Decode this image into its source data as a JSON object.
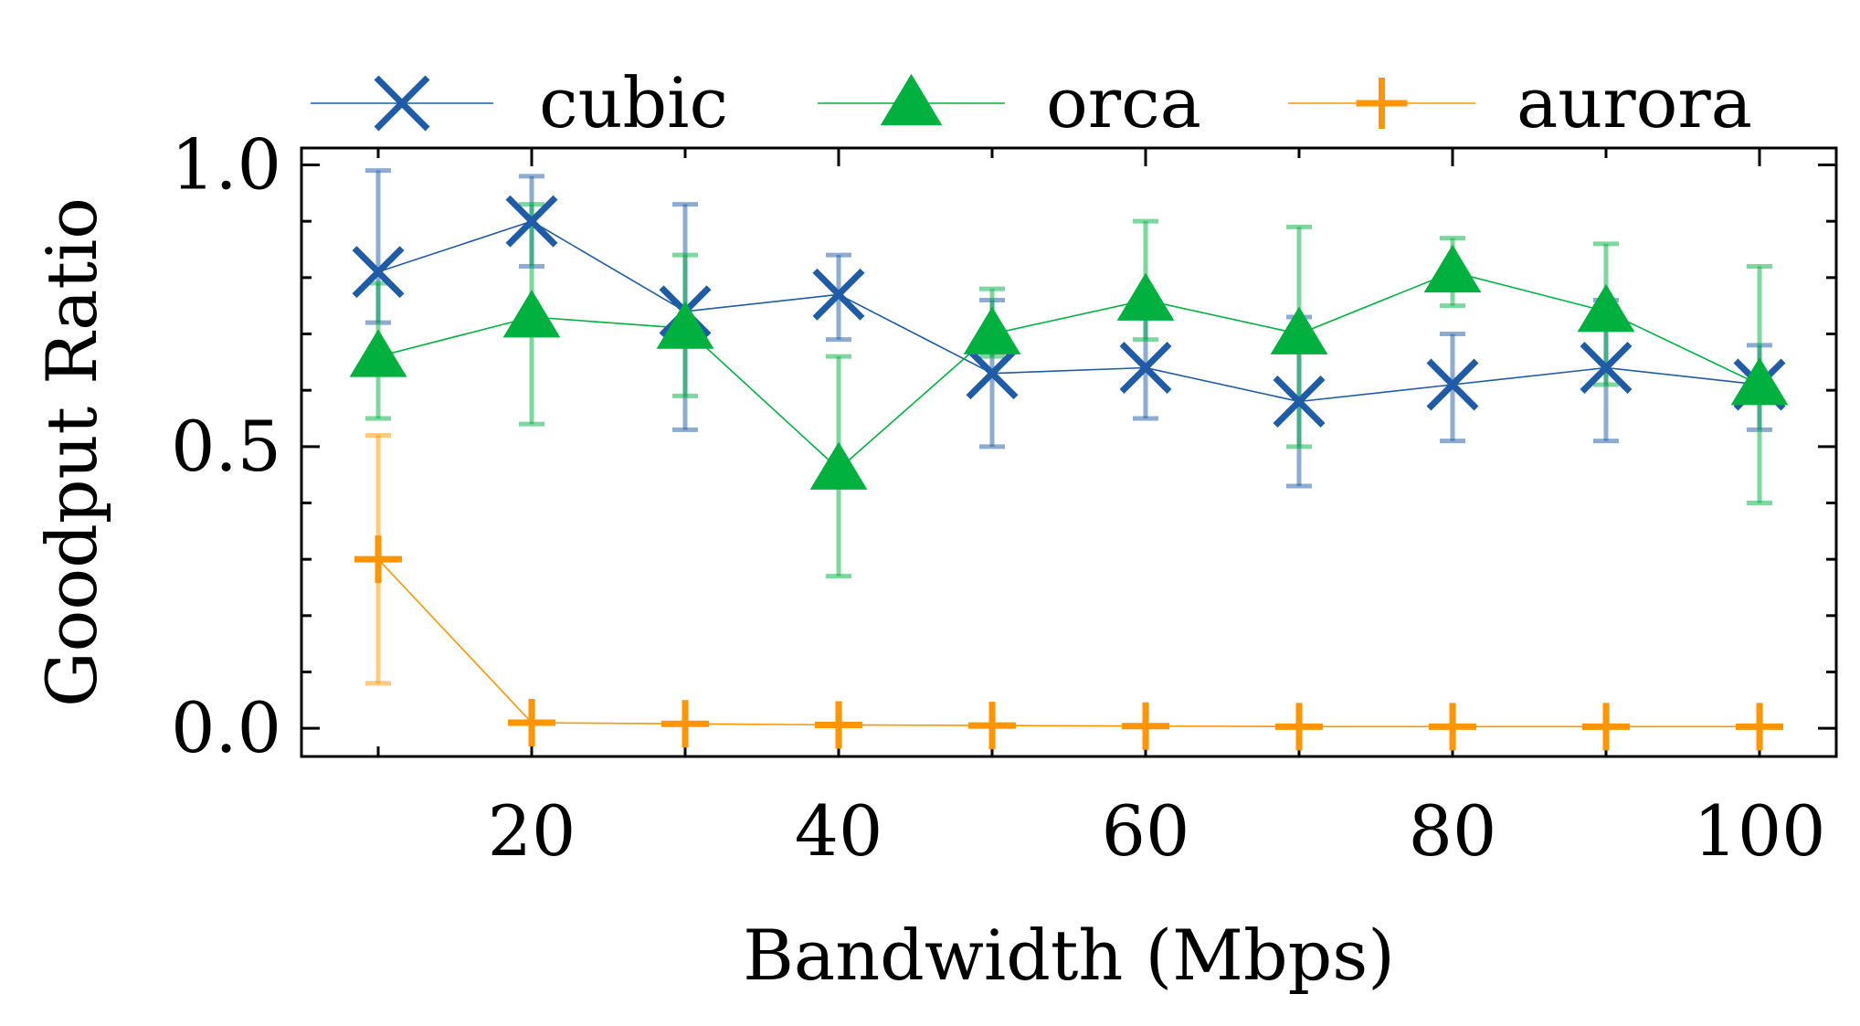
{
  "chart_data": {
    "type": "line",
    "xlabel": "Bandwidth (Mbps)",
    "ylabel": "Goodput Ratio",
    "xlim": [
      5,
      105
    ],
    "ylim": [
      -0.05,
      1.03
    ],
    "xticks": [
      20,
      40,
      60,
      80,
      100
    ],
    "xtick_labels": [
      "20",
      "40",
      "60",
      "80",
      "100"
    ],
    "yticks": [
      0.0,
      0.5,
      1.0
    ],
    "ytick_labels": [
      "0.0",
      "0.5",
      "1.0"
    ],
    "x": [
      10,
      20,
      30,
      40,
      50,
      60,
      70,
      80,
      90,
      100
    ],
    "legend": "top, outside plot, single row",
    "series": [
      {
        "name": "cubic",
        "marker": "x",
        "color": "#1f5ba6",
        "values": [
          0.81,
          0.9,
          0.74,
          0.77,
          0.63,
          0.64,
          0.58,
          0.61,
          0.64,
          0.61
        ],
        "err_low": [
          0.72,
          0.82,
          0.53,
          0.69,
          0.5,
          0.55,
          0.43,
          0.51,
          0.51,
          0.53
        ],
        "err_high": [
          0.99,
          0.98,
          0.93,
          0.84,
          0.76,
          0.74,
          0.73,
          0.7,
          0.76,
          0.68
        ]
      },
      {
        "name": "orca",
        "marker": "triangle",
        "color": "#00b140",
        "values": [
          0.66,
          0.73,
          0.71,
          0.46,
          0.7,
          0.76,
          0.7,
          0.81,
          0.74,
          0.61
        ],
        "err_low": [
          0.55,
          0.54,
          0.59,
          0.27,
          0.66,
          0.69,
          0.5,
          0.75,
          0.61,
          0.4
        ],
        "err_high": [
          0.79,
          0.93,
          0.84,
          0.66,
          0.78,
          0.9,
          0.89,
          0.87,
          0.86,
          0.82
        ]
      },
      {
        "name": "aurora",
        "marker": "plus",
        "color": "#ff9500",
        "values": [
          0.3,
          0.01,
          0.008,
          0.006,
          0.005,
          0.004,
          0.003,
          0.003,
          0.003,
          0.003
        ],
        "err_low": [
          0.08,
          null,
          null,
          null,
          null,
          null,
          null,
          null,
          null,
          null
        ],
        "err_high": [
          0.52,
          null,
          null,
          null,
          null,
          null,
          null,
          null,
          null,
          null
        ]
      }
    ]
  }
}
